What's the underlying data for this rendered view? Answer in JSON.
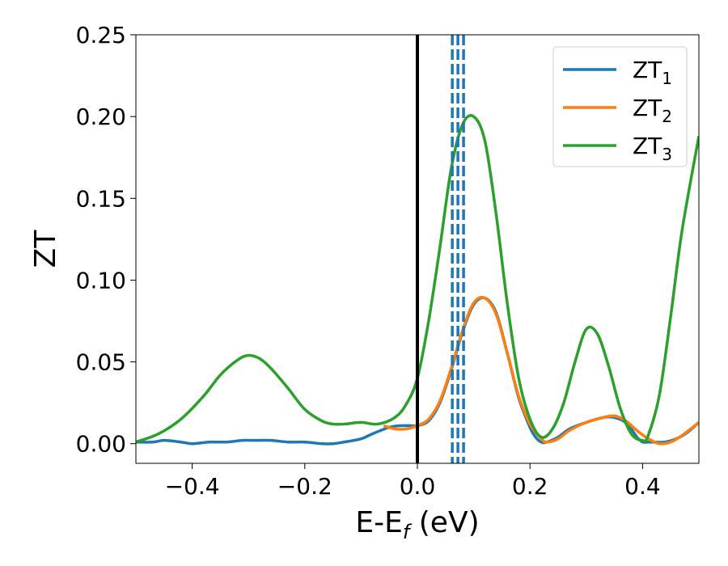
{
  "chart_data": {
    "type": "line",
    "xlabel": "E-E",
    "xlabel_sub": "f",
    "xlabel_unit": " (eV)",
    "ylabel": "ZT",
    "xlim": [
      -0.5,
      0.5
    ],
    "ylim": [
      -0.012,
      0.25
    ],
    "x_ticks": [
      -0.4,
      -0.2,
      0.0,
      0.2,
      0.4
    ],
    "x_tick_labels": [
      "−0.4",
      "−0.2",
      "0.0",
      "0.2",
      "0.4"
    ],
    "y_ticks": [
      0.0,
      0.05,
      0.1,
      0.15,
      0.2,
      0.25
    ],
    "y_tick_labels": [
      "0.00",
      "0.05",
      "0.10",
      "0.15",
      "0.20",
      "0.25"
    ],
    "grid": false,
    "legend_position": "top-right",
    "series": [
      {
        "name": "ZT",
        "name_sub": "1",
        "color": "#1f77b4",
        "x": [
          -0.5,
          -0.47,
          -0.45,
          -0.42,
          -0.4,
          -0.37,
          -0.34,
          -0.31,
          -0.29,
          -0.26,
          -0.23,
          -0.2,
          -0.17,
          -0.15,
          -0.13,
          -0.1,
          -0.08,
          -0.05,
          -0.03,
          -0.01,
          0.0,
          0.02,
          0.04,
          0.06,
          0.08,
          0.1,
          0.12,
          0.14,
          0.16,
          0.18,
          0.2,
          0.21,
          0.22,
          0.23,
          0.25,
          0.27,
          0.3,
          0.33,
          0.35,
          0.37,
          0.38,
          0.39,
          0.4,
          0.41,
          0.42,
          0.44,
          0.46,
          0.48,
          0.5
        ],
        "y": [
          0.001,
          0.001,
          0.002,
          0.001,
          0.0,
          0.001,
          0.001,
          0.002,
          0.002,
          0.002,
          0.001,
          0.001,
          0.0,
          0.0,
          0.001,
          0.003,
          0.006,
          0.01,
          0.011,
          0.011,
          0.011,
          0.014,
          0.025,
          0.045,
          0.068,
          0.085,
          0.089,
          0.08,
          0.055,
          0.028,
          0.01,
          0.004,
          0.001,
          0.001,
          0.004,
          0.009,
          0.013,
          0.016,
          0.016,
          0.013,
          0.009,
          0.004,
          0.001,
          0.001,
          0.001,
          0.001,
          0.003,
          0.007,
          0.013
        ]
      },
      {
        "name": "ZT",
        "name_sub": "2",
        "color": "#ff7f0e",
        "x": [
          -0.06,
          -0.04,
          -0.02,
          0.0,
          0.02,
          0.04,
          0.06,
          0.08,
          0.1,
          0.12,
          0.14,
          0.16,
          0.18,
          0.2,
          0.22,
          0.23,
          0.25,
          0.27,
          0.3,
          0.33,
          0.35,
          0.37,
          0.39,
          0.41,
          0.43,
          0.45,
          0.47,
          0.5
        ],
        "y": [
          0.011,
          0.009,
          0.009,
          0.011,
          0.015,
          0.026,
          0.046,
          0.069,
          0.086,
          0.089,
          0.079,
          0.055,
          0.029,
          0.012,
          0.003,
          0.001,
          0.003,
          0.008,
          0.013,
          0.016,
          0.017,
          0.014,
          0.008,
          0.003,
          0.0,
          0.001,
          0.005,
          0.013
        ]
      },
      {
        "name": "ZT",
        "name_sub": "3",
        "color": "#2ca02c",
        "x": [
          -0.5,
          -0.46,
          -0.42,
          -0.38,
          -0.35,
          -0.32,
          -0.3,
          -0.28,
          -0.26,
          -0.23,
          -0.2,
          -0.17,
          -0.15,
          -0.13,
          -0.1,
          -0.07,
          -0.04,
          -0.02,
          0.0,
          0.02,
          0.04,
          0.06,
          0.08,
          0.1,
          0.12,
          0.14,
          0.16,
          0.18,
          0.2,
          0.22,
          0.24,
          0.26,
          0.28,
          0.3,
          0.32,
          0.34,
          0.36,
          0.38,
          0.4,
          0.41,
          0.43,
          0.45,
          0.47,
          0.5
        ],
        "y": [
          0.001,
          0.006,
          0.015,
          0.029,
          0.042,
          0.051,
          0.054,
          0.052,
          0.046,
          0.034,
          0.021,
          0.014,
          0.012,
          0.012,
          0.013,
          0.012,
          0.016,
          0.024,
          0.04,
          0.075,
          0.12,
          0.168,
          0.195,
          0.2,
          0.185,
          0.14,
          0.085,
          0.04,
          0.015,
          0.004,
          0.009,
          0.025,
          0.05,
          0.07,
          0.067,
          0.047,
          0.022,
          0.006,
          0.002,
          0.005,
          0.03,
          0.078,
          0.13,
          0.188
        ]
      }
    ],
    "vlines": [
      {
        "x": 0.0,
        "color": "#000000",
        "style": "solid"
      },
      {
        "x": 0.062,
        "color": "#1f77b4",
        "style": "dashed"
      },
      {
        "x": 0.072,
        "color": "#1f77b4",
        "style": "dashed"
      },
      {
        "x": 0.082,
        "color": "#1f77b4",
        "style": "dashed"
      }
    ]
  }
}
